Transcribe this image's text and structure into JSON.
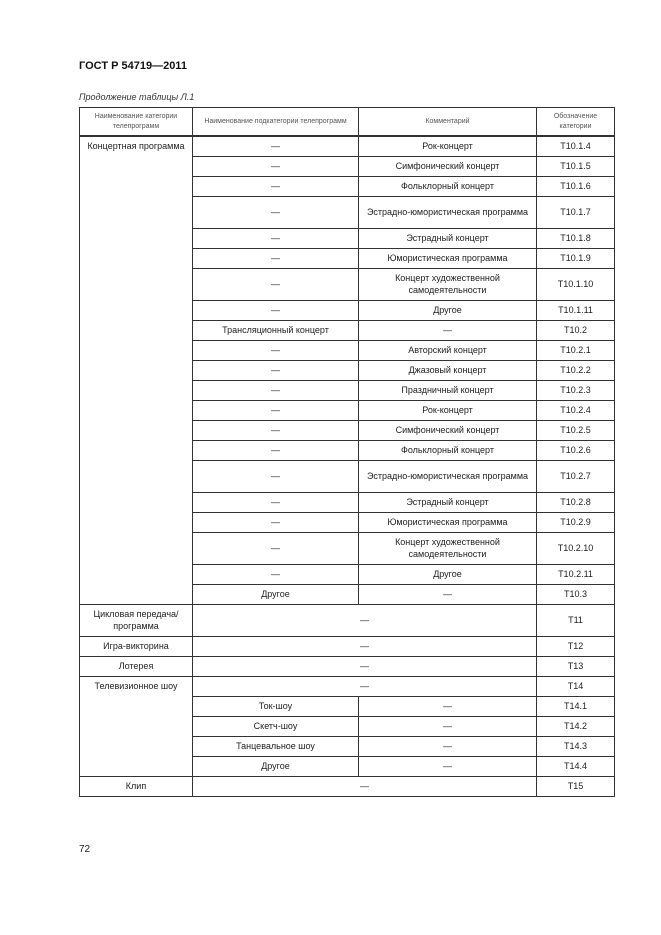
{
  "document": {
    "title": "ГОСТ Р 54719—2011",
    "table_caption": "Продолжение таблицы Л.1",
    "page_number": "72"
  },
  "table": {
    "headers": [
      "Наименование категории телепрограмм",
      "Наименование подкатегории телепрограмм",
      "Комментарий",
      "Обозначение категории"
    ],
    "groups": [
      {
        "category": "Концертная программа",
        "rows": [
          {
            "sub": "—",
            "comment": "Рок-концерт",
            "code": "T10.1.4"
          },
          {
            "sub": "—",
            "comment": "Симфонический концерт",
            "code": "T10.1.5"
          },
          {
            "sub": "—",
            "comment": "Фольклорный концерт",
            "code": "T10.1.6"
          },
          {
            "sub": "—",
            "comment": "Эстрадно-юмористическая программа",
            "code": "T10.1.7",
            "tall": true
          },
          {
            "sub": "—",
            "comment": "Эстрадный концерт",
            "code": "T10.1.8"
          },
          {
            "sub": "—",
            "comment": "Юмористическая программа",
            "code": "T10.1.9"
          },
          {
            "sub": "—",
            "comment": "Концерт художественной самодеятельности",
            "code": "T10.1.10",
            "tall": true
          },
          {
            "sub": "—",
            "comment": "Другое",
            "code": "T10.1.11"
          },
          {
            "sub": "Трансляционный концерт",
            "comment": "—",
            "code": "T10.2"
          },
          {
            "sub": "—",
            "comment": "Авторский концерт",
            "code": "T10.2.1"
          },
          {
            "sub": "—",
            "comment": "Джазовый концерт",
            "code": "T10.2.2"
          },
          {
            "sub": "—",
            "comment": "Праздничный концерт",
            "code": "T10.2.3"
          },
          {
            "sub": "—",
            "comment": "Рок-концерт",
            "code": "T10.2.4"
          },
          {
            "sub": "—",
            "comment": "Симфонический концерт",
            "code": "T10.2.5"
          },
          {
            "sub": "—",
            "comment": "Фольклорный концерт",
            "code": "T10.2.6"
          },
          {
            "sub": "—",
            "comment": "Эстрадно-юмористическая программа",
            "code": "T10.2.7",
            "tall": true
          },
          {
            "sub": "—",
            "comment": "Эстрадный концерт",
            "code": "T10.2.8"
          },
          {
            "sub": "—",
            "comment": "Юмористическая программа",
            "code": "T10.2.9"
          },
          {
            "sub": "—",
            "comment": "Концерт художественной самодеятельности",
            "code": "T10.2.10",
            "tall": true
          },
          {
            "sub": "—",
            "comment": "Другое",
            "code": "T10.2.11"
          },
          {
            "sub": "Другое",
            "comment": "—",
            "code": "T10.3"
          }
        ]
      },
      {
        "category": "Цикловая передача/ программа",
        "rows": [
          {
            "merged": "—",
            "code": "T11",
            "tall": true
          }
        ]
      },
      {
        "category": "Игра-викторина",
        "rows": [
          {
            "merged": "—",
            "code": "T12"
          }
        ]
      },
      {
        "category": "Лотерея",
        "rows": [
          {
            "merged": "—",
            "code": "T13"
          }
        ]
      },
      {
        "category": "Телевизионное шоу",
        "rows": [
          {
            "merged": "—",
            "code": "T14"
          },
          {
            "sub": "Ток-шоу",
            "comment": "—",
            "code": "T14.1"
          },
          {
            "sub": "Скетч-шоу",
            "comment": "—",
            "code": "T14.2"
          },
          {
            "sub": "Танцевальное шоу",
            "comment": "—",
            "code": "T14.3"
          },
          {
            "sub": "Другое",
            "comment": "—",
            "code": "T14.4"
          }
        ]
      },
      {
        "category": "Клип",
        "rows": [
          {
            "merged": "—",
            "code": "T15"
          }
        ]
      }
    ]
  }
}
